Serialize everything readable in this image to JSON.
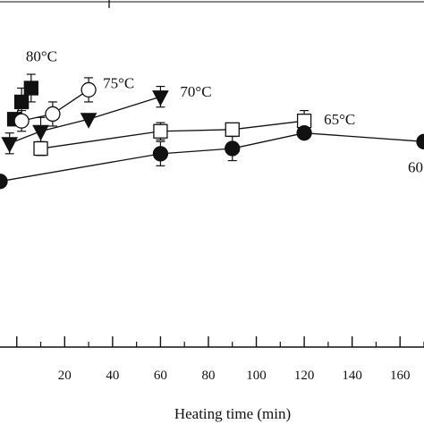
{
  "chart_data": {
    "type": "line",
    "xlabel": "Heating time (min)",
    "xlim": [
      -7,
      170
    ],
    "ylim": [
      0,
      1
    ],
    "x_ticks": [
      20,
      40,
      60,
      80,
      100,
      120,
      140,
      160
    ],
    "series": [
      {
        "name": "80°C",
        "marker": "filled-square",
        "x": [
          -1,
          2,
          6
        ],
        "y": [
          0.66,
          0.71,
          0.75
        ],
        "err": [
          0,
          0.04,
          0.04
        ]
      },
      {
        "name": "75°C",
        "marker": "open-circle",
        "x": [
          2,
          15,
          30
        ],
        "y": [
          0.655,
          0.675,
          0.745
        ],
        "err": [
          0.03,
          0.035,
          0.035
        ]
      },
      {
        "name": "70°C",
        "marker": "filled-triangle-down",
        "x": [
          -3,
          10,
          30,
          60
        ],
        "y": [
          0.59,
          0.625,
          0.66,
          0.725
        ],
        "err": [
          0.03,
          0.04,
          0,
          0.03
        ]
      },
      {
        "name": "65°C",
        "marker": "open-square",
        "x": [
          10,
          60,
          90,
          120
        ],
        "y": [
          0.575,
          0.625,
          0.63,
          0.655
        ],
        "err": [
          0.02,
          0.025,
          0,
          0.03
        ]
      },
      {
        "name": "60",
        "marker": "filled-circle",
        "x": [
          -7,
          60,
          90,
          120,
          170
        ],
        "y": [
          0.48,
          0.56,
          0.575,
          0.62,
          0.595
        ],
        "err": [
          0,
          0.035,
          0.035,
          0,
          0
        ]
      }
    ]
  }
}
